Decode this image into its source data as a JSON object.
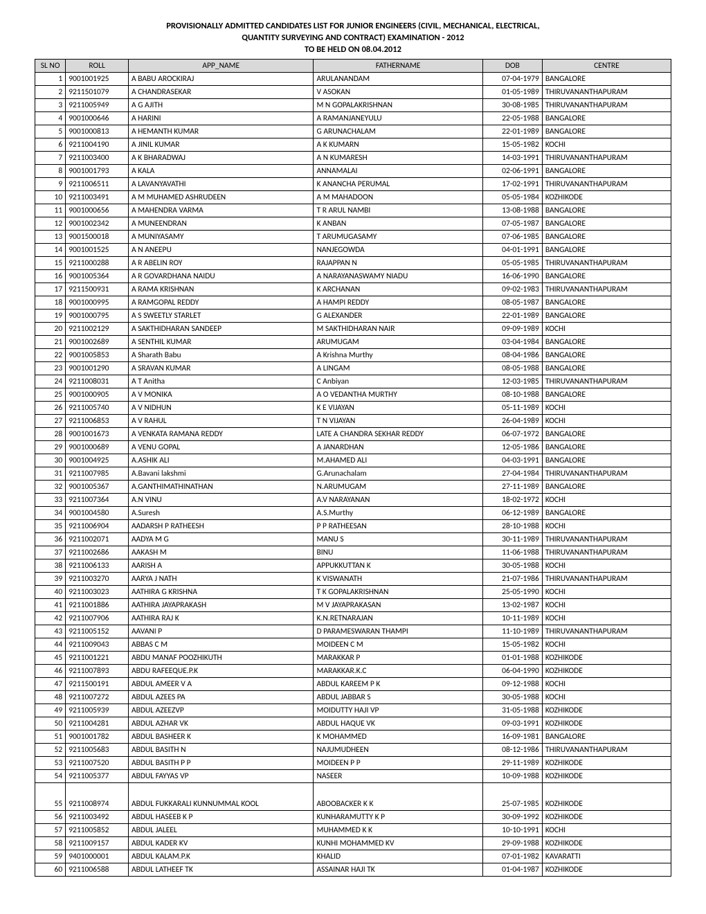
{
  "title": {
    "line1": "PROVISIONALLY ADMITTED CANDIDATES LIST FOR JUNIOR ENGINEERS (CIVIL, MECHANICAL,  ELECTRICAL,",
    "line2": "QUANTITY SURVEYING AND CONTRACT) EXAMINATION - 2012",
    "line3": "TO BE HELD ON 08.04.2012"
  },
  "headers": {
    "slno": "SL NO",
    "roll": "ROLL",
    "app_name": "APP_NAME",
    "fathername": "FATHERNAME",
    "dob": "DOB",
    "centre": "CENTRE"
  },
  "rows": [
    {
      "sl": "1",
      "roll": "9001001925",
      "name": "A  BABU AROCKIRAJ",
      "father": "ARULANANDAM",
      "dob": "07-04-1979",
      "centre": "BANGALORE"
    },
    {
      "sl": "2",
      "roll": "9211501079",
      "name": "A CHANDRASEKAR",
      "father": "V ASOKAN",
      "dob": "01-05-1989",
      "centre": "THIRUVANANTHAPURAM"
    },
    {
      "sl": "3",
      "roll": "9211005949",
      "name": "A G AJITH",
      "father": "M N GOPALAKRISHNAN",
      "dob": "30-08-1985",
      "centre": "THIRUVANANTHAPURAM"
    },
    {
      "sl": "4",
      "roll": "9001000646",
      "name": "A HARINI",
      "father": "A RAMANJANEYULU",
      "dob": "22-05-1988",
      "centre": "BANGALORE"
    },
    {
      "sl": "5",
      "roll": "9001000813",
      "name": "A HEMANTH KUMAR",
      "father": "G ARUNACHALAM",
      "dob": "22-01-1989",
      "centre": "BANGALORE"
    },
    {
      "sl": "6",
      "roll": "9211004190",
      "name": "A JINIL KUMAR",
      "father": "A K KUMARN",
      "dob": "15-05-1982",
      "centre": "KOCHI"
    },
    {
      "sl": "7",
      "roll": "9211003400",
      "name": "A K BHARADWAJ",
      "father": "A N KUMARESH",
      "dob": "14-03-1991",
      "centre": "THIRUVANANTHAPURAM"
    },
    {
      "sl": "8",
      "roll": "9001001793",
      "name": "A KALA",
      "father": "ANNAMALAI",
      "dob": "02-06-1991",
      "centre": "BANGALORE"
    },
    {
      "sl": "9",
      "roll": "9211006511",
      "name": "A LAVANYAVATHI",
      "father": "K ANANCHA PERUMAL",
      "dob": "17-02-1991",
      "centre": "THIRUVANANTHAPURAM"
    },
    {
      "sl": "10",
      "roll": "9211003491",
      "name": "A M MUHAMED ASHRUDEEN",
      "father": "A M MAHADOON",
      "dob": "05-05-1984",
      "centre": "KOZHIKODE"
    },
    {
      "sl": "11",
      "roll": "9001000656",
      "name": "A MAHENDRA VARMA",
      "father": "T R ARUL NAMBI",
      "dob": "13-08-1988",
      "centre": "BANGALORE"
    },
    {
      "sl": "12",
      "roll": "9001002342",
      "name": "A MUNEENDRAN",
      "father": "K ANBAN",
      "dob": "07-05-1987",
      "centre": "BANGALORE"
    },
    {
      "sl": "13",
      "roll": "9001500018",
      "name": "A MUNIYASAMY",
      "father": "T ARUMUGASAMY",
      "dob": "07-06-1985",
      "centre": "BANGALORE"
    },
    {
      "sl": "14",
      "roll": "9001001525",
      "name": "A N ANEEPU",
      "father": "NANJEGOWDA",
      "dob": "04-01-1991",
      "centre": "BANGALORE"
    },
    {
      "sl": "15",
      "roll": "9211000288",
      "name": "A R ABELIN ROY",
      "father": "RAJAPPAN N",
      "dob": "05-05-1985",
      "centre": "THIRUVANANTHAPURAM"
    },
    {
      "sl": "16",
      "roll": "9001005364",
      "name": "A R GOVARDHANA NAIDU",
      "father": "A NARAYANASWAMY NIADU",
      "dob": "16-06-1990",
      "centre": "BANGALORE"
    },
    {
      "sl": "17",
      "roll": "9211500931",
      "name": "A RAMA KRISHNAN",
      "father": "K ARCHANAN",
      "dob": "09-02-1983",
      "centre": "THIRUVANANTHAPURAM"
    },
    {
      "sl": "18",
      "roll": "9001000995",
      "name": "A RAMGOPAL REDDY",
      "father": "A HAMPI REDDY",
      "dob": "08-05-1987",
      "centre": "BANGALORE"
    },
    {
      "sl": "19",
      "roll": "9001000795",
      "name": "A S SWEETLY STARLET",
      "father": "G ALEXANDER",
      "dob": "22-01-1989",
      "centre": "BANGALORE"
    },
    {
      "sl": "20",
      "roll": "9211002129",
      "name": "A SAKTHIDHARAN SANDEEP",
      "father": "M SAKTHIDHARAN NAIR",
      "dob": "09-09-1989",
      "centre": "KOCHI"
    },
    {
      "sl": "21",
      "roll": "9001002689",
      "name": "A SENTHIL KUMAR",
      "father": "ARUMUGAM",
      "dob": "03-04-1984",
      "centre": "BANGALORE"
    },
    {
      "sl": "22",
      "roll": "9001005853",
      "name": "A Sharath Babu",
      "father": "A Krishna Murthy",
      "dob": "08-04-1986",
      "centre": "BANGALORE"
    },
    {
      "sl": "23",
      "roll": "9001001290",
      "name": "A SRAVAN KUMAR",
      "father": "A LINGAM",
      "dob": "08-05-1988",
      "centre": "BANGALORE"
    },
    {
      "sl": "24",
      "roll": "9211008031",
      "name": "A T Anitha",
      "father": "C Anbiyan",
      "dob": "12-03-1985",
      "centre": "THIRUVANANTHAPURAM"
    },
    {
      "sl": "25",
      "roll": "9001000905",
      "name": "A V MONIKA",
      "father": "A O VEDANTHA MURTHY",
      "dob": "08-10-1988",
      "centre": "BANGALORE"
    },
    {
      "sl": "26",
      "roll": "9211005740",
      "name": "A V NIDHUN",
      "father": "K E VIJAYAN",
      "dob": "05-11-1989",
      "centre": "KOCHI"
    },
    {
      "sl": "27",
      "roll": "9211006853",
      "name": "A V RAHUL",
      "father": "T N VIJAYAN",
      "dob": "26-04-1989",
      "centre": "KOCHI"
    },
    {
      "sl": "28",
      "roll": "9001001673",
      "name": "A VENKATA RAMANA REDDY",
      "father": "LATE A CHANDRA SEKHAR REDDY",
      "dob": "06-07-1972",
      "centre": "BANGALORE"
    },
    {
      "sl": "29",
      "roll": "9001000689",
      "name": "A VENU GOPAL",
      "father": "A JANARDHAN",
      "dob": "12-05-1986",
      "centre": "BANGALORE"
    },
    {
      "sl": "30",
      "roll": "9001004925",
      "name": "A.ASHIK ALI",
      "father": "M.AHAMED ALI",
      "dob": "04-03-1991",
      "centre": "BANGALORE"
    },
    {
      "sl": "31",
      "roll": "9211007985",
      "name": "A.Bavani lakshmi",
      "father": "G.Arunachalam",
      "dob": "27-04-1984",
      "centre": "THIRUVANANTHAPURAM"
    },
    {
      "sl": "32",
      "roll": "9001005367",
      "name": "A.GANTHIMATHINATHAN",
      "father": "N.ARUMUGAM",
      "dob": "27-11-1989",
      "centre": "BANGALORE"
    },
    {
      "sl": "33",
      "roll": "9211007364",
      "name": "A.N VINU",
      "father": "A.V NARAYANAN",
      "dob": "18-02-1972",
      "centre": "KOCHI"
    },
    {
      "sl": "34",
      "roll": "9001004580",
      "name": "A.Suresh",
      "father": "A.S.Murthy",
      "dob": "06-12-1989",
      "centre": "BANGALORE"
    },
    {
      "sl": "35",
      "roll": "9211006904",
      "name": "AADARSH P RATHEESH",
      "father": "P P RATHEESAN",
      "dob": "28-10-1988",
      "centre": "KOCHI"
    },
    {
      "sl": "36",
      "roll": "9211002071",
      "name": "AADYA M G",
      "father": "MANU S",
      "dob": "30-11-1989",
      "centre": "THIRUVANANTHAPURAM"
    },
    {
      "sl": "37",
      "roll": "9211002686",
      "name": "AAKASH M",
      "father": "BINU",
      "dob": "11-06-1988",
      "centre": "THIRUVANANTHAPURAM"
    },
    {
      "sl": "38",
      "roll": "9211006133",
      "name": "AARISH A",
      "father": "APPUKKUTTAN K",
      "dob": "30-05-1988",
      "centre": "KOCHI"
    },
    {
      "sl": "39",
      "roll": "9211003270",
      "name": "AARYA J NATH",
      "father": "K VISWANATH",
      "dob": "21-07-1986",
      "centre": "THIRUVANANTHAPURAM"
    },
    {
      "sl": "40",
      "roll": "9211003023",
      "name": "AATHIRA G KRISHNA",
      "father": "T K GOPALAKRISHNAN",
      "dob": "25-05-1990",
      "centre": "KOCHI"
    },
    {
      "sl": "41",
      "roll": "9211001886",
      "name": "AATHIRA JAYAPRAKASH",
      "father": "M V JAYAPRAKASAN",
      "dob": "13-02-1987",
      "centre": "KOCHI"
    },
    {
      "sl": "42",
      "roll": "9211007906",
      "name": "AATHIRA RAJ K",
      "father": "K.N.RETNARAJAN",
      "dob": "10-11-1989",
      "centre": "KOCHI"
    },
    {
      "sl": "43",
      "roll": "9211005152",
      "name": "AAVANI P",
      "father": "D PARAMESWARAN THAMPI",
      "dob": "11-10-1989",
      "centre": "THIRUVANANTHAPURAM"
    },
    {
      "sl": "44",
      "roll": "9211009043",
      "name": "ABBAS C M",
      "father": "MOIDEEN C M",
      "dob": "15-05-1982",
      "centre": "KOCHI"
    },
    {
      "sl": "45",
      "roll": "9211001221",
      "name": "ABDU MANAF POOZHIKUTH",
      "father": "MARAKKAR P",
      "dob": "01-01-1988",
      "centre": "KOZHIKODE"
    },
    {
      "sl": "46",
      "roll": "9211007893",
      "name": "ABDU RAFEEQUE.P.K",
      "father": "MARAKKAR.K.C",
      "dob": "06-04-1990",
      "centre": "KOZHIKODE"
    },
    {
      "sl": "47",
      "roll": "9211500191",
      "name": "ABDUL AMEER V A",
      "father": "ABDUL KAREEM P K",
      "dob": "09-12-1988",
      "centre": "KOCHI"
    },
    {
      "sl": "48",
      "roll": "9211007272",
      "name": "ABDUL AZEES PA",
      "father": "ABDUL JABBAR S",
      "dob": "30-05-1988",
      "centre": "KOCHI"
    },
    {
      "sl": "49",
      "roll": "9211005939",
      "name": "ABDUL AZEEZVP",
      "father": "MOIDUTTY HAJI VP",
      "dob": "31-05-1988",
      "centre": "KOZHIKODE"
    },
    {
      "sl": "50",
      "roll": "9211004281",
      "name": "ABDUL AZHAR VK",
      "father": "ABDUL HAQUE VK",
      "dob": "09-03-1991",
      "centre": "KOZHIKODE"
    },
    {
      "sl": "51",
      "roll": "9001001782",
      "name": "ABDUL BASHEER K",
      "father": "K MOHAMMED",
      "dob": "16-09-1981",
      "centre": "BANGALORE"
    },
    {
      "sl": "52",
      "roll": "9211005683",
      "name": "ABDUL BASITH N",
      "father": "NAJUMUDHEEN",
      "dob": "08-12-1986",
      "centre": "THIRUVANANTHAPURAM"
    },
    {
      "sl": "53",
      "roll": "9211007520",
      "name": "ABDUL BASITH P P",
      "father": "MOIDEEN P P",
      "dob": "29-11-1989",
      "centre": "KOZHIKODE"
    },
    {
      "sl": "54",
      "roll": "9211005377",
      "name": "ABDUL FAYYAS VP",
      "father": "NASEER",
      "dob": "10-09-1988",
      "centre": "KOZHIKODE"
    },
    {
      "sl": "55",
      "roll": "9211008974",
      "name": "ABDUL FUKKARALI KUNNUMMAL KOOL",
      "father": "ABOOBACKER K K",
      "dob": "25-07-1985",
      "centre": "KOZHIKODE",
      "tall": true
    },
    {
      "sl": "56",
      "roll": "9211003492",
      "name": "ABDUL HASEEB K P",
      "father": "KUNHARAMUTTY K P",
      "dob": "30-09-1992",
      "centre": "KOZHIKODE"
    },
    {
      "sl": "57",
      "roll": "9211005852",
      "name": "ABDUL JALEEL",
      "father": "MUHAMMED K K",
      "dob": "10-10-1991",
      "centre": "KOCHI"
    },
    {
      "sl": "58",
      "roll": "9211009157",
      "name": "ABDUL KADER KV",
      "father": "KUNHI MOHAMMED KV",
      "dob": "29-09-1988",
      "centre": "KOZHIKODE"
    },
    {
      "sl": "59",
      "roll": "9401000001",
      "name": "ABDUL KALAM.P.K",
      "father": "KHALID",
      "dob": "07-01-1982",
      "centre": "KAVARATTI"
    },
    {
      "sl": "60",
      "roll": "9211006588",
      "name": "ABDUL LATHEEF TK",
      "father": "ASSAINAR HAJI TK",
      "dob": "01-04-1987",
      "centre": "KOZHIKODE"
    }
  ]
}
